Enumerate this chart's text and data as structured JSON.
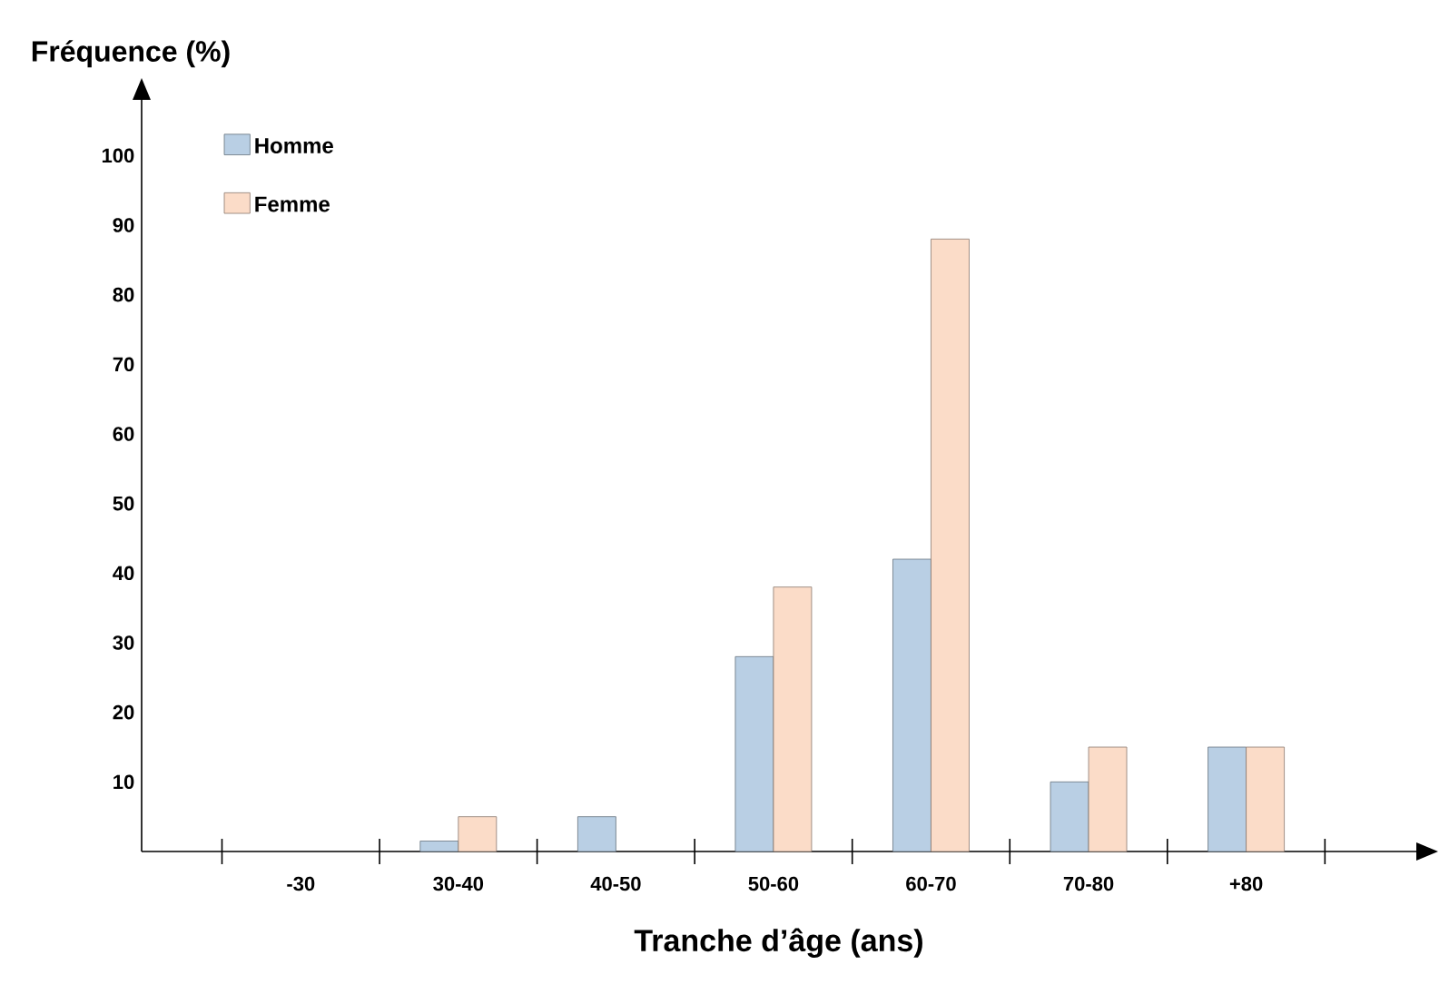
{
  "chart_data": {
    "type": "bar",
    "xlabel": "Tranche d’âge (ans)",
    "ylabel": "Fréquence (%)",
    "categories": [
      "-30",
      "30-40",
      "40-50",
      "50-60",
      "60-70",
      "70-80",
      "+80"
    ],
    "series": [
      {
        "name": "Homme",
        "color": "#b9cfe4",
        "values": [
          0,
          1.5,
          5,
          28,
          42,
          10,
          15
        ]
      },
      {
        "name": "Femme",
        "color": "#fbdcc8",
        "values": [
          0,
          5,
          0,
          38,
          88,
          15,
          15
        ]
      }
    ],
    "ylim": [
      0,
      108
    ],
    "yticks": [
      10,
      20,
      30,
      40,
      50,
      60,
      70,
      80,
      90,
      100
    ],
    "legend": "top left"
  }
}
